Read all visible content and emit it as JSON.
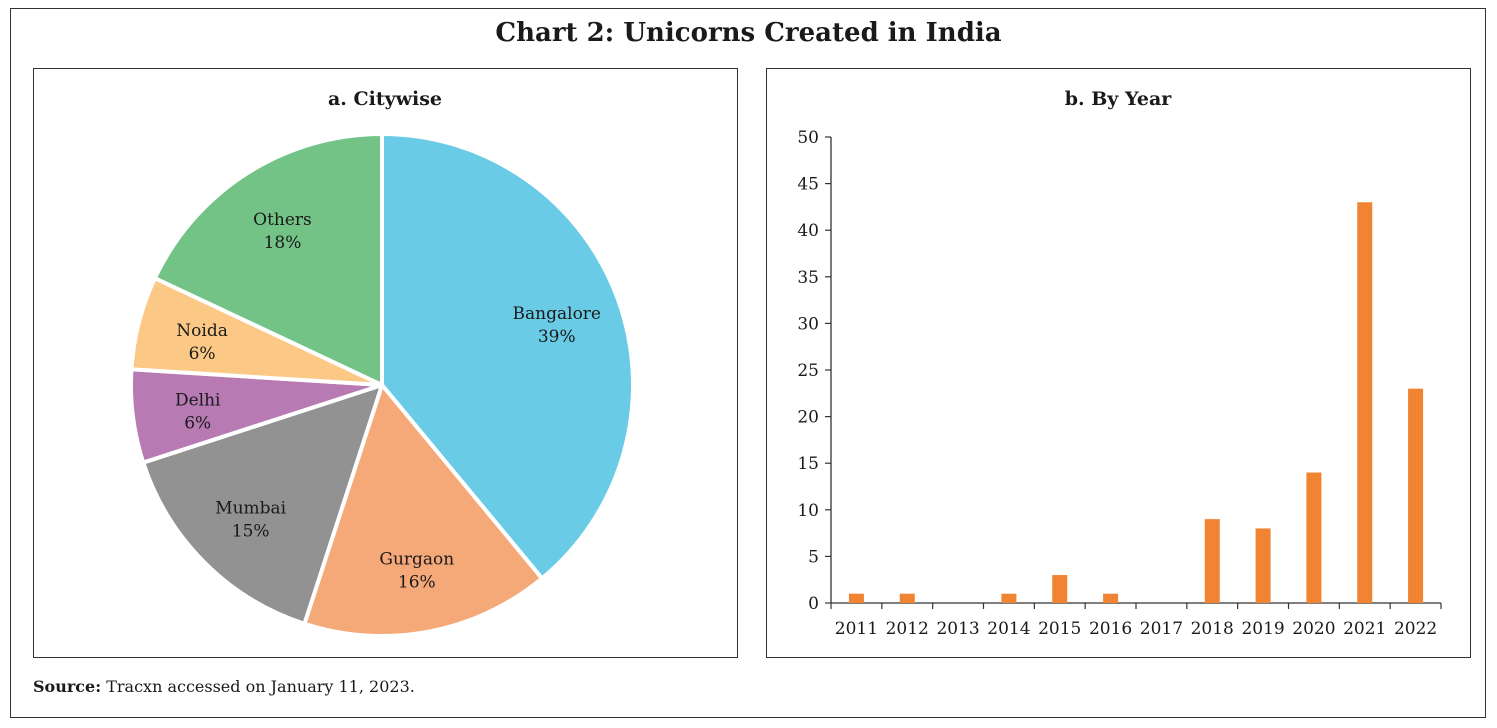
{
  "title": "Chart 2: Unicorns Created in India",
  "source": {
    "label": "Source:",
    "text": "Tracxn accessed on January 11, 2023."
  },
  "chart_data": [
    {
      "type": "pie",
      "title": "a. Citywise",
      "slices": [
        {
          "label": "Bangalore",
          "value": 39,
          "display": "39%",
          "color": "#69CBE5"
        },
        {
          "label": "Gurgaon",
          "value": 16,
          "display": "16%",
          "color": "#F5A978"
        },
        {
          "label": "Mumbai",
          "value": 15,
          "display": "15%",
          "color": "#929292"
        },
        {
          "label": "Delhi",
          "value": 6,
          "display": "6%",
          "color": "#B77AB3"
        },
        {
          "label": "Noida",
          "value": 6,
          "display": "6%",
          "color": "#FBC985"
        },
        {
          "label": "Others",
          "value": 18,
          "display": "18%",
          "color": "#73C386"
        }
      ]
    },
    {
      "type": "bar",
      "title": "b.  By Year",
      "categories": [
        "2011",
        "2012",
        "2013",
        "2014",
        "2015",
        "2016",
        "2017",
        "2018",
        "2019",
        "2020",
        "2021",
        "2022"
      ],
      "values": [
        1,
        1,
        0,
        1,
        3,
        1,
        0,
        9,
        8,
        14,
        43,
        23
      ],
      "ylim": [
        0,
        50
      ],
      "yticks": [
        0,
        5,
        10,
        15,
        20,
        25,
        30,
        35,
        40,
        45,
        50
      ],
      "color": "#F08432",
      "xlabel": "",
      "ylabel": ""
    }
  ]
}
